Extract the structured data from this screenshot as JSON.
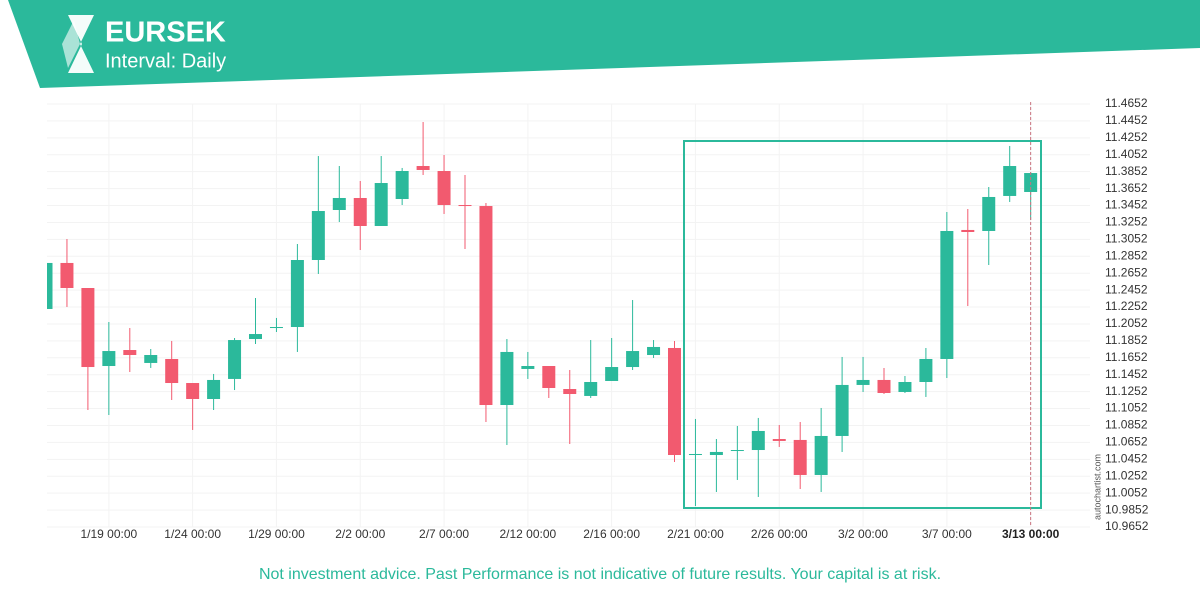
{
  "header": {
    "title": "EURSEK",
    "subtitle": "Interval: Daily"
  },
  "chart_data": {
    "type": "candlestick",
    "categories": [
      null,
      null,
      null,
      "1/19 00:00",
      null,
      null,
      null,
      "1/24 00:00",
      null,
      null,
      null,
      "1/29 00:00",
      null,
      null,
      null,
      "2/2 00:00",
      null,
      null,
      null,
      "2/7 00:00",
      null,
      null,
      null,
      "2/12 00:00",
      null,
      null,
      null,
      "2/16 00:00",
      null,
      null,
      null,
      "2/21 00:00",
      null,
      null,
      null,
      "2/26 00:00",
      null,
      null,
      null,
      "3/2 00:00",
      null,
      null,
      null,
      "3/7 00:00",
      null,
      null,
      null,
      "3/13 00:00"
    ],
    "open": [
      11.2229,
      11.2773,
      11.2477,
      11.1555,
      11.1744,
      11.1591,
      11.1638,
      11.1354,
      11.1165,
      11.1402,
      11.1874,
      11.2004,
      11.2016,
      11.2808,
      11.3399,
      11.3541,
      11.321,
      11.3529,
      11.3919,
      11.386,
      11.3458,
      11.3446,
      11.1094,
      11.152,
      11.1555,
      11.1283,
      11.1201,
      11.1378,
      11.1543,
      11.1685,
      11.1768,
      11.0503,
      11.0503,
      11.0551,
      11.0562,
      11.0692,
      11.0681,
      11.0267,
      11.0728,
      11.1331,
      11.139,
      11.1248,
      11.1366,
      11.1638,
      11.3163,
      11.3151,
      11.3565,
      11.3612
    ],
    "high": [
      11.2773,
      11.3056,
      11.2477,
      11.2075,
      11.2004,
      11.1756,
      11.1851,
      11.1354,
      11.1461,
      11.1886,
      11.2359,
      11.2123,
      11.2997,
      11.4037,
      11.3919,
      11.3742,
      11.4037,
      11.3896,
      11.4439,
      11.4049,
      11.3813,
      11.3482,
      11.1874,
      11.1721,
      11.1555,
      11.1508,
      11.1862,
      11.1886,
      11.2335,
      11.1862,
      11.1851,
      11.0929,
      11.0692,
      11.0846,
      11.0941,
      11.0858,
      11.0893,
      11.1059,
      11.1662,
      11.1662,
      11.1532,
      11.1437,
      11.1768,
      11.3375,
      11.3411,
      11.3671,
      11.4156,
      11.3848
    ],
    "low": [
      11.2229,
      11.2253,
      11.1035,
      11.0976,
      11.1484,
      11.1532,
      11.1153,
      11.0799,
      11.1035,
      11.1271,
      11.1815,
      11.1957,
      11.1721,
      11.2643,
      11.3257,
      11.2926,
      11.321,
      11.3458,
      11.3813,
      11.3352,
      11.2938,
      11.0893,
      11.0621,
      11.1402,
      11.1177,
      11.0633,
      11.1177,
      11.1378,
      11.1508,
      11.165,
      11.042,
      10.99,
      11.0066,
      11.0208,
      11.0007,
      11.0598,
      11.0101,
      11.0066,
      11.0539,
      11.1248,
      11.1224,
      11.1236,
      11.1189,
      11.1413,
      11.2264,
      11.2749,
      11.3494,
      11.3281
    ],
    "close": [
      11.2773,
      11.2477,
      11.1543,
      11.1732,
      11.1685,
      11.1685,
      11.1354,
      11.1165,
      11.139,
      11.1862,
      11.1933,
      11.2016,
      11.2808,
      11.3387,
      11.3541,
      11.321,
      11.3718,
      11.386,
      11.3872,
      11.3458,
      11.3446,
      11.1094,
      11.1721,
      11.1555,
      11.1295,
      11.1224,
      11.1366,
      11.1543,
      11.1732,
      11.178,
      11.0503,
      11.0515,
      11.0539,
      11.0562,
      11.0787,
      11.0669,
      11.0267,
      11.0728,
      11.1331,
      11.139,
      11.1236,
      11.1366,
      11.1638,
      11.3151,
      11.3139,
      11.3553,
      11.3919,
      11.3836
    ],
    "colors": {
      "up": "#2bb99b",
      "down": "#f25a6f"
    },
    "ylim": [
      10.9652,
      11.4652
    ],
    "yticks": [
      11.4652,
      11.4452,
      11.4252,
      11.4052,
      11.3852,
      11.3652,
      11.3452,
      11.3252,
      11.3052,
      11.2852,
      11.2652,
      11.2452,
      11.2252,
      11.2052,
      11.1852,
      11.1652,
      11.1452,
      11.1252,
      11.1052,
      11.0852,
      11.0652,
      11.0452,
      11.0252,
      11.0052,
      10.9852,
      10.9652
    ],
    "grid": true
  },
  "watermark": "autochartist.com",
  "footer": "Not investment advice. Past Performance is not indicative of future results. Your capital is at risk."
}
